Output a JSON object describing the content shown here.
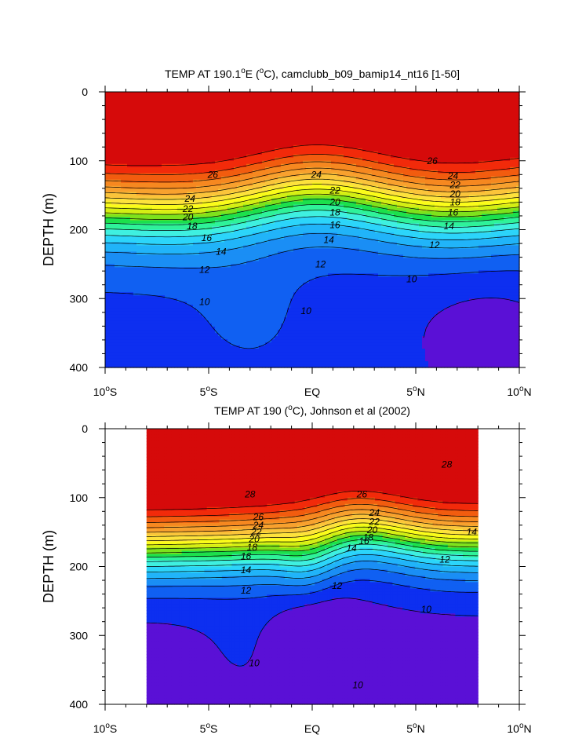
{
  "chart_data": [
    {
      "type": "heatmap",
      "title": "TEMP AT 190.1°E (°C), camclubb_b09_bamip14_nt16 [1-50]",
      "title_parts": {
        "a": "TEMP AT 190.1",
        "sup": "o",
        "b": "E (",
        "sup2": "o",
        "c": "C), camclubb_b09_bamip14_nt16 [1-50]"
      },
      "xlabel": "",
      "ylabel": "DEPTH (m)",
      "xlim": [
        -10,
        10
      ],
      "ylim": [
        400,
        0
      ],
      "x_ticks": [
        {
          "v": -10,
          "num": "10",
          "sup": "o",
          "hem": "S"
        },
        {
          "v": -5,
          "num": "5",
          "sup": "o",
          "hem": "S"
        },
        {
          "v": 0,
          "num": "EQ",
          "sup": "",
          "hem": ""
        },
        {
          "v": 5,
          "num": "5",
          "sup": "o",
          "hem": "N"
        },
        {
          "v": 10,
          "num": "10",
          "sup": "o",
          "hem": "N"
        }
      ],
      "y_ticks": [
        0,
        100,
        200,
        300,
        400
      ],
      "data_xlim": [
        -10,
        10
      ],
      "contour_labels": [
        {
          "text": "26",
          "x": -4.8,
          "y": 120
        },
        {
          "text": "24",
          "x": -5.9,
          "y": 155
        },
        {
          "text": "22",
          "x": -6.0,
          "y": 170
        },
        {
          "text": "20",
          "x": -6.0,
          "y": 182
        },
        {
          "text": "18",
          "x": -5.8,
          "y": 195
        },
        {
          "text": "16",
          "x": -5.1,
          "y": 212
        },
        {
          "text": "14",
          "x": -4.4,
          "y": 232
        },
        {
          "text": "12",
          "x": -5.2,
          "y": 258
        },
        {
          "text": "10",
          "x": -5.2,
          "y": 305
        },
        {
          "text": "24",
          "x": 0.2,
          "y": 120
        },
        {
          "text": "22",
          "x": 1.1,
          "y": 143
        },
        {
          "text": "20",
          "x": 1.1,
          "y": 160
        },
        {
          "text": "18",
          "x": 1.1,
          "y": 175
        },
        {
          "text": "16",
          "x": 1.1,
          "y": 193
        },
        {
          "text": "14",
          "x": 0.8,
          "y": 215
        },
        {
          "text": "12",
          "x": 0.4,
          "y": 250
        },
        {
          "text": "10",
          "x": -0.3,
          "y": 318
        },
        {
          "text": "26",
          "x": 5.8,
          "y": 100
        },
        {
          "text": "24",
          "x": 6.8,
          "y": 122
        },
        {
          "text": "22",
          "x": 6.9,
          "y": 135
        },
        {
          "text": "20",
          "x": 6.9,
          "y": 148
        },
        {
          "text": "18",
          "x": 6.9,
          "y": 160
        },
        {
          "text": "16",
          "x": 6.8,
          "y": 175
        },
        {
          "text": "14",
          "x": 6.6,
          "y": 195
        },
        {
          "text": "12",
          "x": 5.9,
          "y": 222
        },
        {
          "text": "10",
          "x": 4.8,
          "y": 272
        }
      ]
    },
    {
      "type": "heatmap",
      "title": "TEMP AT 190 (°C), Johnson et al (2002)",
      "title_parts": {
        "a": "TEMP AT 190 (",
        "sup": "o",
        "b": "C), Johnson et al (2002)",
        "sup2": "",
        "c": ""
      },
      "xlabel": "",
      "ylabel": "DEPTH (m)",
      "xlim": [
        -10,
        10
      ],
      "ylim": [
        400,
        0
      ],
      "x_ticks": [
        {
          "v": -10,
          "num": "10",
          "sup": "o",
          "hem": "S"
        },
        {
          "v": -5,
          "num": "5",
          "sup": "o",
          "hem": "S"
        },
        {
          "v": 0,
          "num": "EQ",
          "sup": "",
          "hem": ""
        },
        {
          "v": 5,
          "num": "5",
          "sup": "o",
          "hem": "N"
        },
        {
          "v": 10,
          "num": "10",
          "sup": "o",
          "hem": "N"
        }
      ],
      "y_ticks": [
        0,
        100,
        200,
        300,
        400
      ],
      "data_xlim": [
        -8,
        8
      ],
      "contour_labels": [
        {
          "text": "28",
          "x": -3.0,
          "y": 95
        },
        {
          "text": "26",
          "x": -2.6,
          "y": 128
        },
        {
          "text": "24",
          "x": -2.6,
          "y": 140
        },
        {
          "text": "22",
          "x": -2.7,
          "y": 150
        },
        {
          "text": "20",
          "x": -2.8,
          "y": 160
        },
        {
          "text": "18",
          "x": -2.9,
          "y": 172
        },
        {
          "text": "16",
          "x": -3.2,
          "y": 185
        },
        {
          "text": "14",
          "x": -3.2,
          "y": 205
        },
        {
          "text": "12",
          "x": -3.2,
          "y": 235
        },
        {
          "text": "10",
          "x": -2.8,
          "y": 340
        },
        {
          "text": "26",
          "x": 2.4,
          "y": 95
        },
        {
          "text": "24",
          "x": 3.0,
          "y": 122
        },
        {
          "text": "22",
          "x": 3.0,
          "y": 135
        },
        {
          "text": "20",
          "x": 2.9,
          "y": 147
        },
        {
          "text": "18",
          "x": 2.7,
          "y": 158
        },
        {
          "text": "16",
          "x": 2.5,
          "y": 163
        },
        {
          "text": "14",
          "x": 1.9,
          "y": 173
        },
        {
          "text": "12",
          "x": 1.2,
          "y": 228
        },
        {
          "text": "10",
          "x": 5.5,
          "y": 262
        },
        {
          "text": "10",
          "x": 2.2,
          "y": 372
        },
        {
          "text": "12",
          "x": 6.4,
          "y": 190
        },
        {
          "text": "14",
          "x": 7.7,
          "y": 150
        },
        {
          "text": "28",
          "x": 6.5,
          "y": 52
        }
      ]
    }
  ],
  "colors": {
    "levels_low_to_high": [
      "#5a10d6",
      "#0d2ff0",
      "#1060f2",
      "#1a8ef5",
      "#21b4f9",
      "#2cd5fa",
      "#3ff0e0",
      "#2ff29a",
      "#1ce04c",
      "#7ee21c",
      "#d4ef14",
      "#fbfc1a",
      "#fde23c",
      "#fbc43a",
      "#f8a12e",
      "#f68820",
      "#f25c0f",
      "#f22a0a",
      "#d60a0a"
    ],
    "level_start": 8,
    "contour": "#000000",
    "frame": "#000000"
  }
}
